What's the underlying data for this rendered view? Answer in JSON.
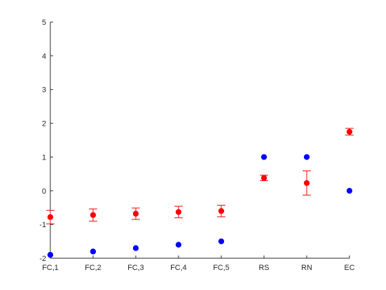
{
  "chart_data": {
    "type": "scatter",
    "title": "",
    "xlabel": "",
    "ylabel": "",
    "categories": [
      "FC,1",
      "FC,2",
      "FC,3",
      "FC,4",
      "FC,5",
      "RS",
      "RN",
      "EC"
    ],
    "ylim": [
      -2,
      5
    ],
    "yticks": [
      -2,
      -1,
      0,
      1,
      2,
      3,
      4,
      5
    ],
    "grid": false,
    "legend": "none",
    "series": [
      {
        "color": "#0000ff",
        "values": [
          -1.9,
          -1.8,
          -1.7,
          -1.6,
          -1.5,
          1.0,
          1.0,
          0.0
        ]
      },
      {
        "color": "#ff0000",
        "values": [
          -0.78,
          -0.72,
          -0.68,
          -0.63,
          -0.6,
          0.38,
          0.23,
          1.75
        ],
        "error": [
          0.2,
          0.18,
          0.17,
          0.17,
          0.17,
          0.08,
          0.36,
          0.1
        ]
      }
    ]
  }
}
